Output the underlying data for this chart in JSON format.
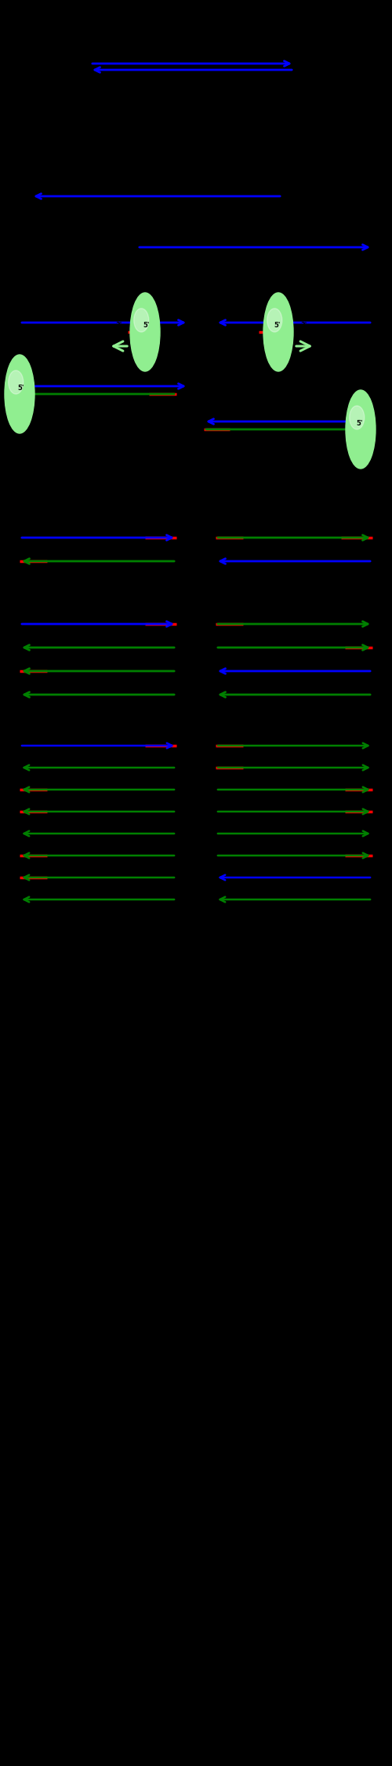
{
  "bg_color": "#000000",
  "blue": "#0000FF",
  "green": "#008000",
  "red": "#FF0000",
  "light_green": "#90EE90",
  "white": "#FFFFFF",
  "fig_width": 5,
  "fig_height": 22.5,
  "dpi": 100
}
